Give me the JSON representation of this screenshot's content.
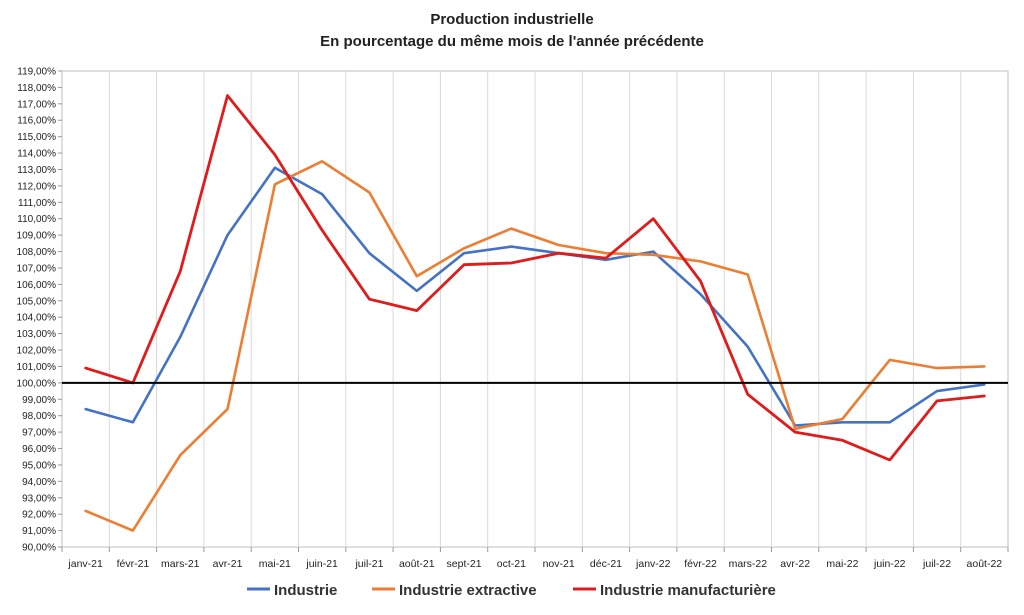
{
  "chart_data": {
    "type": "line",
    "title": "Production industrielle",
    "subtitle": "En pourcentage du même mois de l'année précédente",
    "xlabel": "",
    "ylabel": "",
    "ylim": [
      90,
      119
    ],
    "ytick_step": 1,
    "reference_line": 100,
    "grid": "vertical",
    "legend_position": "bottom",
    "categories": [
      "janv-21",
      "févr-21",
      "mars-21",
      "avr-21",
      "mai-21",
      "juin-21",
      "juil-21",
      "août-21",
      "sept-21",
      "oct-21",
      "nov-21",
      "déc-21",
      "janv-22",
      "févr-22",
      "mars-22",
      "avr-22",
      "mai-22",
      "juin-22",
      "juil-22",
      "août-22"
    ],
    "series": [
      {
        "name": "Industrie",
        "color": "#4472C4",
        "values": [
          98.4,
          97.6,
          102.8,
          109.0,
          113.1,
          111.5,
          107.9,
          105.6,
          107.9,
          108.3,
          107.9,
          107.5,
          108.0,
          105.4,
          102.2,
          97.4,
          97.6,
          97.6,
          99.5,
          99.9
        ]
      },
      {
        "name": "Industrie extractive",
        "color": "#ED7D31",
        "values": [
          92.2,
          91.0,
          95.6,
          98.4,
          112.1,
          113.5,
          111.6,
          106.5,
          108.2,
          109.4,
          108.4,
          107.9,
          107.8,
          107.4,
          106.6,
          97.2,
          97.8,
          101.4,
          100.9,
          101.0
        ]
      },
      {
        "name": "Industrie manufacturière",
        "color": "#E01B1B",
        "values": [
          100.9,
          100.0,
          106.8,
          117.5,
          113.9,
          109.3,
          105.1,
          104.4,
          107.2,
          107.3,
          107.9,
          107.6,
          110.0,
          106.2,
          99.3,
          97.0,
          96.5,
          95.3,
          98.9,
          99.2
        ]
      }
    ]
  }
}
